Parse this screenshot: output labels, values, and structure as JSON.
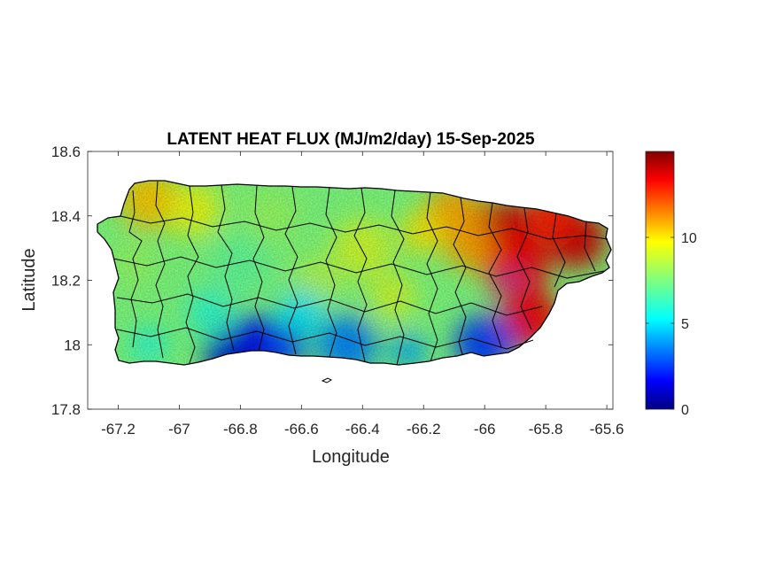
{
  "figure": {
    "title": "LATENT HEAT FLUX (MJ/m2/day) 15-Sep-2025",
    "xlabel": "Longitude",
    "ylabel": "Latitude"
  },
  "chart_data": {
    "type": "heatmap",
    "title": "LATENT HEAT FLUX (MJ/m2/day) 15-Sep-2025",
    "xlabel": "Longitude",
    "ylabel": "Latitude",
    "xlim": [
      -67.3,
      -65.58
    ],
    "ylim": [
      17.8,
      18.6
    ],
    "x_ticks": [
      -67.2,
      -67,
      -66.8,
      -66.6,
      -66.4,
      -66.2,
      -66,
      -65.8,
      -65.6
    ],
    "x_tick_labels": [
      "-67.2",
      "-67",
      "-66.8",
      "-66.6",
      "-66.4",
      "-66.2",
      "-66",
      "-65.8",
      "-65.6"
    ],
    "y_ticks": [
      17.8,
      18,
      18.2,
      18.4,
      18.6
    ],
    "y_tick_labels": [
      "17.8",
      "18",
      "18.2",
      "18.4",
      "18.6"
    ],
    "colormap": "jet",
    "color_range": [
      0,
      15
    ],
    "colorbar_ticks": [
      0,
      5,
      10
    ],
    "colorbar_tick_labels": [
      "0",
      "5",
      "10"
    ],
    "grid": false,
    "region": "Puerto Rico municipalities",
    "value_pattern": [
      {
        "lon": -65.95,
        "lat": 18.36,
        "value": 14
      },
      {
        "lon": -65.7,
        "lat": 18.33,
        "value": 14
      },
      {
        "lon": -65.85,
        "lat": 18.08,
        "value": 13.5
      },
      {
        "lon": -66.1,
        "lat": 18.4,
        "value": 11
      },
      {
        "lon": -67.1,
        "lat": 18.45,
        "value": 10.5
      },
      {
        "lon": -66.4,
        "lat": 18.3,
        "value": 9
      },
      {
        "lon": -66.8,
        "lat": 18.25,
        "value": 7
      },
      {
        "lon": -66.75,
        "lat": 18.0,
        "value": 1.5
      },
      {
        "lon": -66.45,
        "lat": 18.0,
        "value": 3.5
      },
      {
        "lon": -66.0,
        "lat": 18.0,
        "value": 2.5
      }
    ]
  }
}
